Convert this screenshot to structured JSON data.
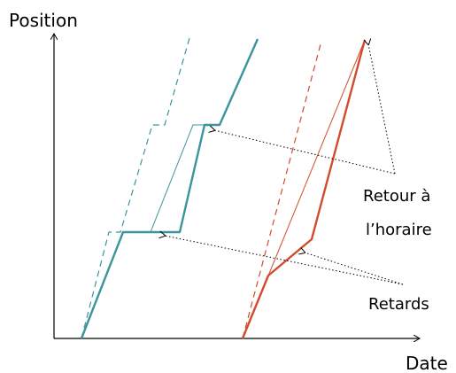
{
  "axes": {
    "y_label": "Position",
    "x_label": "Date"
  },
  "annotations": {
    "back_on_schedule_line1": "Retour à",
    "back_on_schedule_line2": "l’horaire",
    "delays": "Retards"
  },
  "colors": {
    "teal": "#3a949c",
    "red": "#d24b2c",
    "axis": "#000000"
  }
}
